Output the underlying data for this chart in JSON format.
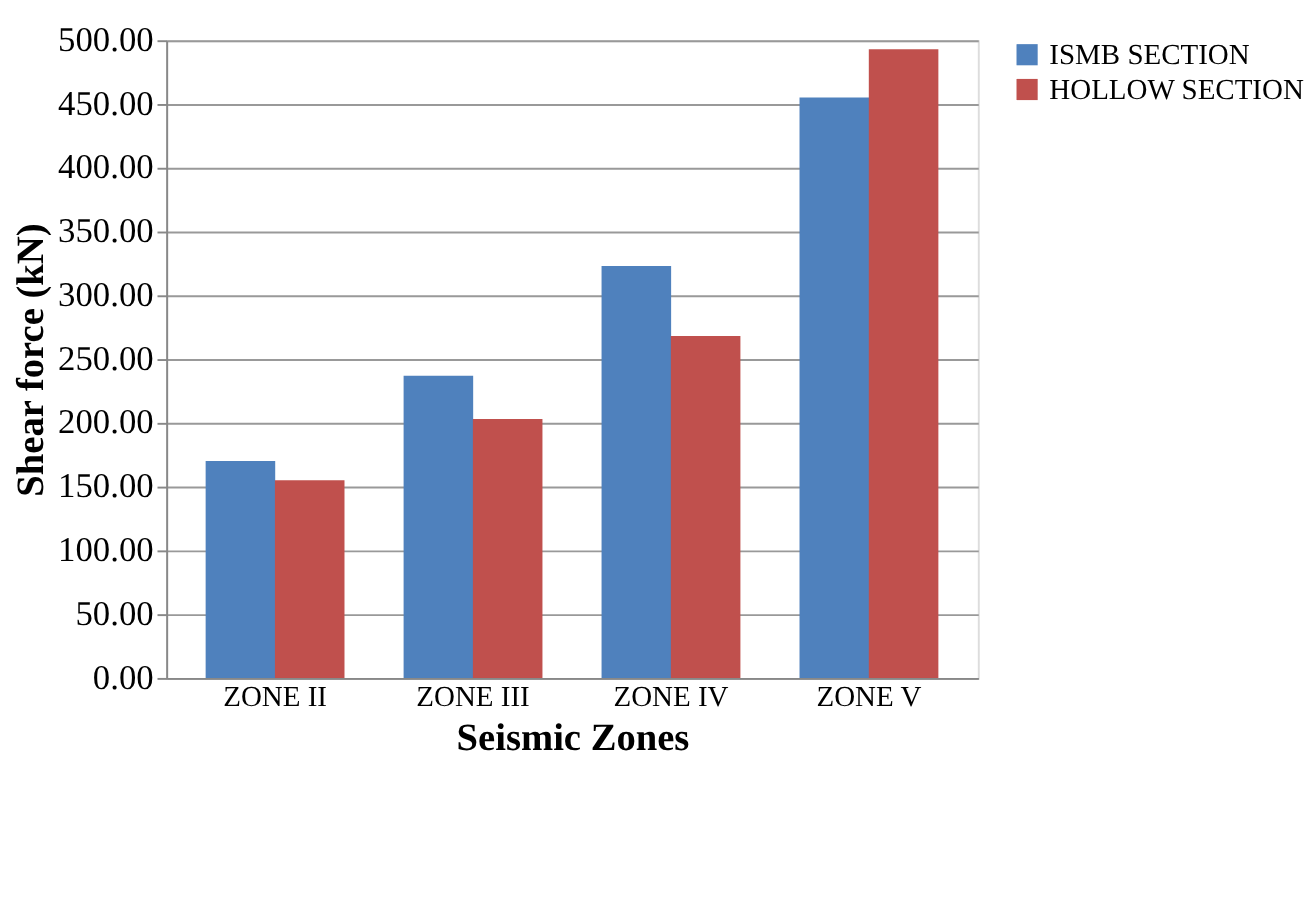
{
  "chart_data": {
    "type": "bar",
    "categories": [
      "ZONE II",
      "ZONE III",
      "ZONE IV",
      "ZONE V"
    ],
    "series": [
      {
        "name": "ISMB SECTION",
        "color": "#4f81bd",
        "values": [
          170,
          237,
          323,
          455
        ]
      },
      {
        "name": "HOLLOW SECTION",
        "color": "#c0504d",
        "values": [
          155,
          203,
          268,
          493
        ]
      }
    ],
    "xlabel": "Seismic Zones",
    "ylabel": "Shear force (kN)",
    "ylim": [
      0,
      500
    ],
    "yticks": [
      {
        "value": 0,
        "label": "0.00"
      },
      {
        "value": 50,
        "label": "50.00"
      },
      {
        "value": 100,
        "label": "100.00"
      },
      {
        "value": 150,
        "label": "150.00"
      },
      {
        "value": 200,
        "label": "200.00"
      },
      {
        "value": 250,
        "label": "250.00"
      },
      {
        "value": 300,
        "label": "300.00"
      },
      {
        "value": 350,
        "label": "350.00"
      },
      {
        "value": 400,
        "label": "400.00"
      },
      {
        "value": 450,
        "label": "450.00"
      },
      {
        "value": 500,
        "label": "500.00"
      }
    ],
    "grid": "y",
    "legend": "right"
  }
}
